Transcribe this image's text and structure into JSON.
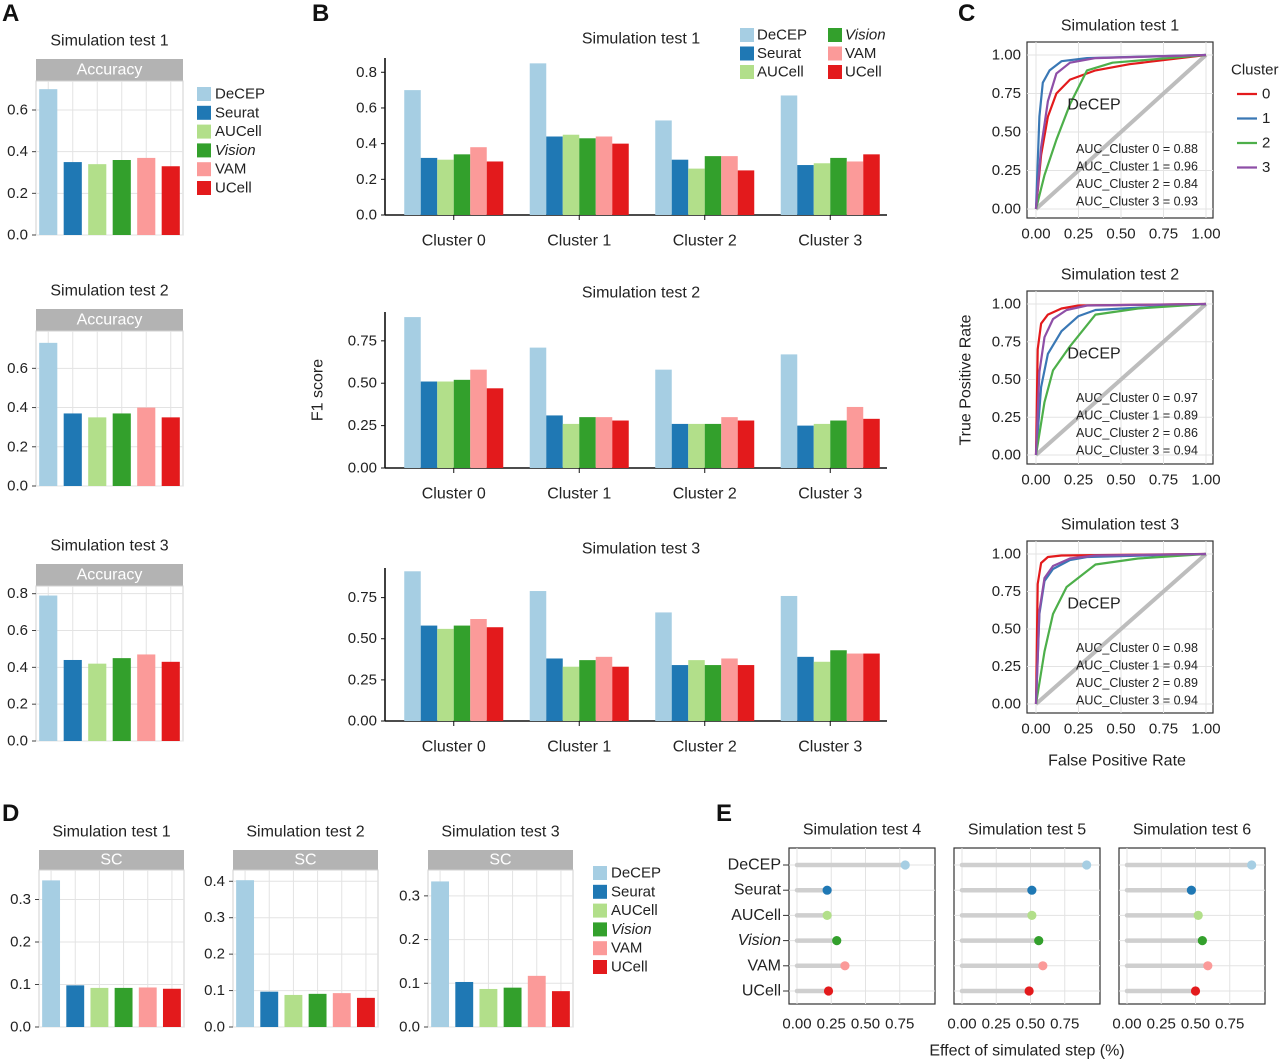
{
  "colors": {
    "DeCEP": "#a6cee3",
    "Seurat": "#1f78b4",
    "AUCell": "#b2df8a",
    "Vision": "#33a02c",
    "VAM": "#fb9a99",
    "UCell": "#e31a1c",
    "strip": "#b3b3b3",
    "grid": "#e3e3e3",
    "diag": "#bdbdbd",
    "roc0": "#e31a1c",
    "roc1": "#3a78b5",
    "roc2": "#4daf4a",
    "roc3": "#8e4fa7"
  },
  "panel_labels": [
    "A",
    "B",
    "C",
    "D",
    "E"
  ],
  "methods": [
    "DeCEP",
    "Seurat",
    "AUCell",
    "Vision",
    "VAM",
    "UCell"
  ],
  "chart_data": [
    {
      "id": "A",
      "type": "bar",
      "strip": "Accuracy",
      "categories": [
        "DeCEP",
        "Seurat",
        "AUCell",
        "Vision",
        "VAM",
        "UCell"
      ],
      "panels": [
        {
          "title": "Simulation test 1",
          "values": [
            0.7,
            0.35,
            0.34,
            0.36,
            0.37,
            0.33
          ],
          "ylim": [
            0,
            0.72
          ],
          "yticks": [
            0.0,
            0.2,
            0.4,
            0.6
          ]
        },
        {
          "title": "Simulation test 2",
          "values": [
            0.73,
            0.37,
            0.35,
            0.37,
            0.4,
            0.35
          ],
          "ylim": [
            0,
            0.77
          ],
          "yticks": [
            0.0,
            0.2,
            0.4,
            0.6
          ]
        },
        {
          "title": "Simulation test 3",
          "values": [
            0.79,
            0.44,
            0.42,
            0.45,
            0.47,
            0.43
          ],
          "ylim": [
            0,
            0.82
          ],
          "yticks": [
            0.0,
            0.2,
            0.4,
            0.6,
            0.8
          ]
        }
      ],
      "legend": [
        "DeCEP",
        "Seurat",
        "AUCell",
        "Vision",
        "VAM",
        "UCell"
      ]
    },
    {
      "id": "B",
      "type": "bar",
      "ylabel": "F1 score",
      "categories": [
        "Cluster 0",
        "Cluster 1",
        "Cluster 2",
        "Cluster 3"
      ],
      "panels": [
        {
          "title": "Simulation test 1",
          "ylim": [
            0,
            0.88
          ],
          "yticks": [
            0.0,
            0.2,
            0.4,
            0.6,
            0.8
          ],
          "series": [
            {
              "name": "DeCEP",
              "values": [
                0.7,
                0.85,
                0.53,
                0.67
              ]
            },
            {
              "name": "Seurat",
              "values": [
                0.32,
                0.44,
                0.31,
                0.28
              ]
            },
            {
              "name": "AUCell",
              "values": [
                0.31,
                0.45,
                0.26,
                0.29
              ]
            },
            {
              "name": "Vision",
              "values": [
                0.34,
                0.43,
                0.33,
                0.32
              ]
            },
            {
              "name": "VAM",
              "values": [
                0.38,
                0.44,
                0.33,
                0.3
              ]
            },
            {
              "name": "UCell",
              "values": [
                0.3,
                0.4,
                0.25,
                0.34
              ]
            }
          ]
        },
        {
          "title": "Simulation test 2",
          "ylim": [
            0,
            0.92
          ],
          "yticks": [
            0.0,
            0.25,
            0.5,
            0.75
          ],
          "series": [
            {
              "name": "DeCEP",
              "values": [
                0.89,
                0.71,
                0.58,
                0.67
              ]
            },
            {
              "name": "Seurat",
              "values": [
                0.51,
                0.31,
                0.26,
                0.25
              ]
            },
            {
              "name": "AUCell",
              "values": [
                0.51,
                0.26,
                0.26,
                0.26
              ]
            },
            {
              "name": "Vision",
              "values": [
                0.52,
                0.3,
                0.26,
                0.28
              ]
            },
            {
              "name": "VAM",
              "values": [
                0.58,
                0.3,
                0.3,
                0.36
              ]
            },
            {
              "name": "UCell",
              "values": [
                0.47,
                0.28,
                0.28,
                0.29
              ]
            }
          ]
        },
        {
          "title": "Simulation test 3",
          "ylim": [
            0,
            0.93
          ],
          "yticks": [
            0.0,
            0.25,
            0.5,
            0.75
          ],
          "series": [
            {
              "name": "DeCEP",
              "values": [
                0.91,
                0.79,
                0.66,
                0.76
              ]
            },
            {
              "name": "Seurat",
              "values": [
                0.58,
                0.38,
                0.34,
                0.39
              ]
            },
            {
              "name": "AUCell",
              "values": [
                0.56,
                0.33,
                0.37,
                0.36
              ]
            },
            {
              "name": "Vision",
              "values": [
                0.58,
                0.37,
                0.34,
                0.43
              ]
            },
            {
              "name": "VAM",
              "values": [
                0.62,
                0.39,
                0.38,
                0.41
              ]
            },
            {
              "name": "UCell",
              "values": [
                0.57,
                0.33,
                0.34,
                0.41
              ]
            }
          ]
        }
      ],
      "legend": [
        "DeCEP",
        "Vision",
        "Seurat",
        "VAM",
        "AUCell",
        "UCell"
      ]
    },
    {
      "id": "C",
      "type": "line",
      "xlabel": "False Positive Rate",
      "ylabel": "True Positive Rate",
      "xlim": [
        0,
        1
      ],
      "ylim": [
        0,
        1
      ],
      "ticks": [
        "0.00",
        "0.25",
        "0.50",
        "0.75",
        "1.00"
      ],
      "legend_title": "Cluster",
      "legend": [
        "0",
        "1",
        "2",
        "3"
      ],
      "method_label": "DeCEP",
      "panels": [
        {
          "title": "Simulation test 1",
          "auc_labels": [
            "AUC_Cluster 0 = 0.88",
            "AUC_Cluster 1 = 0.96",
            "AUC_Cluster 2 = 0.84",
            "AUC_Cluster 3 = 0.93"
          ],
          "curves": [
            {
              "name": "0",
              "points": [
                [
                  0,
                  0
                ],
                [
                  0.03,
                  0.35
                ],
                [
                  0.07,
                  0.6
                ],
                [
                  0.12,
                  0.75
                ],
                [
                  0.2,
                  0.84
                ],
                [
                  0.35,
                  0.9
                ],
                [
                  0.55,
                  0.94
                ],
                [
                  1,
                  1
                ]
              ]
            },
            {
              "name": "1",
              "points": [
                [
                  0,
                  0
                ],
                [
                  0.02,
                  0.6
                ],
                [
                  0.04,
                  0.82
                ],
                [
                  0.08,
                  0.9
                ],
                [
                  0.15,
                  0.96
                ],
                [
                  0.3,
                  0.98
                ],
                [
                  1,
                  1
                ]
              ]
            },
            {
              "name": "2",
              "points": [
                [
                  0,
                  0
                ],
                [
                  0.05,
                  0.22
                ],
                [
                  0.12,
                  0.45
                ],
                [
                  0.2,
                  0.68
                ],
                [
                  0.3,
                  0.9
                ],
                [
                  0.45,
                  0.95
                ],
                [
                  1,
                  1
                ]
              ]
            },
            {
              "name": "3",
              "points": [
                [
                  0,
                  0
                ],
                [
                  0.03,
                  0.4
                ],
                [
                  0.07,
                  0.7
                ],
                [
                  0.12,
                  0.88
                ],
                [
                  0.2,
                  0.95
                ],
                [
                  0.35,
                  0.98
                ],
                [
                  1,
                  1
                ]
              ]
            }
          ]
        },
        {
          "title": "Simulation test 2",
          "auc_labels": [
            "AUC_Cluster 0 = 0.97",
            "AUC_Cluster 1 = 0.89",
            "AUC_Cluster 2 = 0.86",
            "AUC_Cluster 3 = 0.94"
          ],
          "curves": [
            {
              "name": "0",
              "points": [
                [
                  0,
                  0
                ],
                [
                  0.01,
                  0.7
                ],
                [
                  0.03,
                  0.87
                ],
                [
                  0.07,
                  0.93
                ],
                [
                  0.15,
                  0.97
                ],
                [
                  0.25,
                  0.99
                ],
                [
                  1,
                  1
                ]
              ]
            },
            {
              "name": "1",
              "points": [
                [
                  0,
                  0
                ],
                [
                  0.03,
                  0.45
                ],
                [
                  0.07,
                  0.67
                ],
                [
                  0.15,
                  0.82
                ],
                [
                  0.25,
                  0.92
                ],
                [
                  0.35,
                  0.96
                ],
                [
                  1,
                  1
                ]
              ]
            },
            {
              "name": "2",
              "points": [
                [
                  0,
                  0
                ],
                [
                  0.05,
                  0.35
                ],
                [
                  0.1,
                  0.56
                ],
                [
                  0.2,
                  0.72
                ],
                [
                  0.35,
                  0.93
                ],
                [
                  0.6,
                  0.97
                ],
                [
                  1,
                  1
                ]
              ]
            },
            {
              "name": "3",
              "points": [
                [
                  0,
                  0
                ],
                [
                  0.02,
                  0.55
                ],
                [
                  0.05,
                  0.78
                ],
                [
                  0.1,
                  0.9
                ],
                [
                  0.18,
                  0.96
                ],
                [
                  0.3,
                  0.99
                ],
                [
                  1,
                  1
                ]
              ]
            }
          ]
        },
        {
          "title": "Simulation test 3",
          "auc_labels": [
            "AUC_Cluster 0 = 0.98",
            "AUC_Cluster 1 = 0.94",
            "AUC_Cluster 2 = 0.89",
            "AUC_Cluster 3 = 0.94"
          ],
          "curves": [
            {
              "name": "0",
              "points": [
                [
                  0,
                  0
                ],
                [
                  0.01,
                  0.8
                ],
                [
                  0.03,
                  0.94
                ],
                [
                  0.07,
                  0.98
                ],
                [
                  0.15,
                  0.99
                ],
                [
                  1,
                  1
                ]
              ]
            },
            {
              "name": "1",
              "points": [
                [
                  0,
                  0
                ],
                [
                  0.02,
                  0.6
                ],
                [
                  0.05,
                  0.82
                ],
                [
                  0.1,
                  0.9
                ],
                [
                  0.2,
                  0.96
                ],
                [
                  0.3,
                  0.98
                ],
                [
                  1,
                  1
                ]
              ]
            },
            {
              "name": "2",
              "points": [
                [
                  0,
                  0
                ],
                [
                  0.05,
                  0.35
                ],
                [
                  0.1,
                  0.6
                ],
                [
                  0.18,
                  0.78
                ],
                [
                  0.35,
                  0.93
                ],
                [
                  0.6,
                  0.97
                ],
                [
                  1,
                  1
                ]
              ]
            },
            {
              "name": "3",
              "points": [
                [
                  0,
                  0
                ],
                [
                  0.02,
                  0.62
                ],
                [
                  0.05,
                  0.84
                ],
                [
                  0.1,
                  0.92
                ],
                [
                  0.2,
                  0.97
                ],
                [
                  0.35,
                  0.99
                ],
                [
                  1,
                  1
                ]
              ]
            }
          ]
        }
      ]
    },
    {
      "id": "D",
      "type": "bar",
      "strip": "SC",
      "categories": [
        "DeCEP",
        "Seurat",
        "AUCell",
        "Vision",
        "VAM",
        "UCell"
      ],
      "panels": [
        {
          "title": "Simulation test 1",
          "values": [
            0.345,
            0.098,
            0.092,
            0.092,
            0.093,
            0.09
          ],
          "ylim": [
            0,
            0.36
          ],
          "yticks": [
            0.0,
            0.1,
            0.2,
            0.3
          ]
        },
        {
          "title": "Simulation test 2",
          "values": [
            0.403,
            0.097,
            0.088,
            0.091,
            0.093,
            0.08
          ],
          "ylim": [
            0,
            0.42
          ],
          "yticks": [
            0.0,
            0.1,
            0.2,
            0.3,
            0.4
          ]
        },
        {
          "title": "Simulation test 3",
          "values": [
            0.333,
            0.103,
            0.087,
            0.09,
            0.117,
            0.082
          ],
          "ylim": [
            0,
            0.35
          ],
          "yticks": [
            0.0,
            0.1,
            0.2,
            0.3
          ]
        }
      ],
      "legend": [
        "DeCEP",
        "Seurat",
        "AUCell",
        "Vision",
        "VAM",
        "UCell"
      ]
    },
    {
      "id": "E",
      "type": "scatter",
      "xlabel": "Effect of simulated step (%)",
      "categories": [
        "DeCEP",
        "Seurat",
        "AUCell",
        "Vision",
        "VAM",
        "UCell"
      ],
      "xlim": [
        0,
        1.0
      ],
      "xticks": [
        "0.00",
        "0.25",
        "0.50",
        "0.75"
      ],
      "panels": [
        {
          "title": "Simulation test 4",
          "values": [
            0.79,
            0.22,
            0.22,
            0.29,
            0.35,
            0.23
          ]
        },
        {
          "title": "Simulation test 5",
          "values": [
            0.91,
            0.51,
            0.51,
            0.56,
            0.59,
            0.49
          ]
        },
        {
          "title": "Simulation test 6",
          "values": [
            0.91,
            0.47,
            0.52,
            0.55,
            0.59,
            0.5
          ]
        }
      ]
    }
  ]
}
